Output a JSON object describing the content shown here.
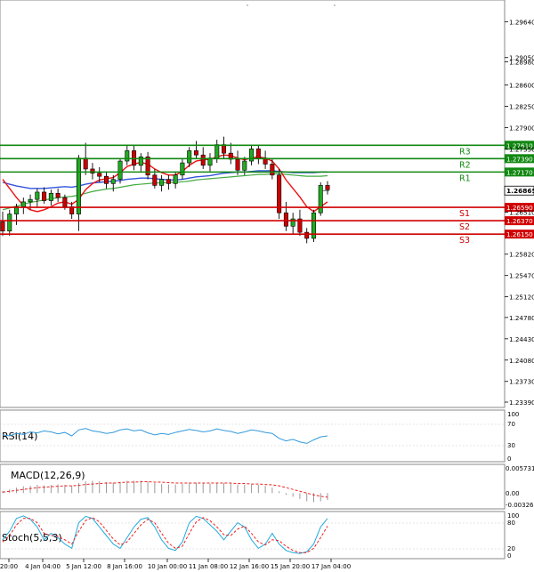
{
  "colors": {
    "support": "#d00000",
    "resistance": "#118811",
    "candle_up": "#22aa22",
    "candle_down": "#cc0000",
    "ma_red": "#ee1111",
    "ma_blue": "#3355dd",
    "ma_green": "#44aa44",
    "rsi_line": "#3399dd",
    "macd_hist": "#999999",
    "macd_signal": "#ee2222",
    "stoch_main": "#22aadd",
    "stoch_signal": "#ee2222"
  },
  "main_axis": {
    "ticks": [
      "1.29640",
      "1.29050",
      "1.28980",
      "1.28600",
      "1.28250",
      "1.27900",
      "1.27550",
      "1.26510",
      "1.25820",
      "1.25470",
      "1.25120",
      "1.24780",
      "1.24430",
      "1.24080",
      "1.23730",
      "1.23390"
    ],
    "ylim": [
      1.2339,
      1.2985
    ]
  },
  "levels": [
    {
      "name": "R3",
      "label": "1.27610",
      "value": 1.2761,
      "kind": "resistance"
    },
    {
      "name": "R2",
      "label": "1.27390",
      "value": 1.2739,
      "kind": "resistance"
    },
    {
      "name": "R1",
      "label": "1.27170",
      "value": 1.2717,
      "kind": "resistance"
    },
    {
      "name": "S1",
      "label": "1.26590",
      "value": 1.2659,
      "kind": "support"
    },
    {
      "name": "S2",
      "label": "1.26370",
      "value": 1.2637,
      "kind": "support"
    },
    {
      "name": "S3",
      "label": "1.26150",
      "value": 1.2615,
      "kind": "support"
    }
  ],
  "current_price": {
    "label": "1.26865",
    "value": 1.26865
  },
  "x_axis": {
    "labels": [
      "20:00",
      "4 Jan 04:00",
      "5 Jan 12:00",
      "8 Jan 16:00",
      "10 Jan 00:00",
      "11 Jan 08:00",
      "12 Jan 16:00",
      "15 Jan 20:00",
      "17 Jan 04:00"
    ]
  },
  "indicators": {
    "rsi": {
      "title": "RSI(14)",
      "ticks": [
        "100",
        "70",
        "30",
        "0"
      ]
    },
    "macd": {
      "title": "MACD(12,26,9)",
      "ticks": [
        "0.005731",
        "0.00",
        "-0.003269"
      ]
    },
    "stoch": {
      "title": "Stoch(5,5,3)",
      "ticks": [
        "100",
        "80",
        "20",
        "0"
      ]
    }
  },
  "chart_data": {
    "type": "candlestick",
    "candles": [
      [
        1.2635,
        1.2652,
        1.2612,
        1.262
      ],
      [
        1.262,
        1.2655,
        1.2612,
        1.2648
      ],
      [
        1.2648,
        1.2665,
        1.263,
        1.266
      ],
      [
        1.266,
        1.2675,
        1.2648,
        1.2668
      ],
      [
        1.2668,
        1.268,
        1.2655,
        1.2672
      ],
      [
        1.2672,
        1.269,
        1.266,
        1.2684
      ],
      [
        1.2684,
        1.2692,
        1.2665,
        1.267
      ],
      [
        1.267,
        1.2688,
        1.2662,
        1.2682
      ],
      [
        1.2682,
        1.269,
        1.2668,
        1.2675
      ],
      [
        1.2675,
        1.268,
        1.2655,
        1.266
      ],
      [
        1.266,
        1.2668,
        1.264,
        1.2648
      ],
      [
        1.2648,
        1.2745,
        1.262,
        1.274
      ],
      [
        1.274,
        1.2765,
        1.2712,
        1.2722
      ],
      [
        1.2722,
        1.2732,
        1.2705,
        1.2715
      ],
      [
        1.2715,
        1.2725,
        1.27,
        1.271
      ],
      [
        1.271,
        1.2718,
        1.269,
        1.2698
      ],
      [
        1.2698,
        1.2712,
        1.2685,
        1.2705
      ],
      [
        1.2705,
        1.2738,
        1.2698,
        1.2735
      ],
      [
        1.2735,
        1.276,
        1.2728,
        1.2752
      ],
      [
        1.2752,
        1.276,
        1.272,
        1.2728
      ],
      [
        1.2728,
        1.2748,
        1.2718,
        1.2742
      ],
      [
        1.2742,
        1.275,
        1.2705,
        1.2712
      ],
      [
        1.2712,
        1.2722,
        1.269,
        1.2695
      ],
      [
        1.2695,
        1.2712,
        1.2685,
        1.2705
      ],
      [
        1.2705,
        1.2712,
        1.2688,
        1.2698
      ],
      [
        1.2698,
        1.2718,
        1.269,
        1.2712
      ],
      [
        1.2712,
        1.2738,
        1.2705,
        1.2732
      ],
      [
        1.2732,
        1.2758,
        1.2725,
        1.2752
      ],
      [
        1.2752,
        1.2768,
        1.2738,
        1.2745
      ],
      [
        1.2745,
        1.2758,
        1.2722,
        1.2728
      ],
      [
        1.2728,
        1.2748,
        1.2718,
        1.274
      ],
      [
        1.274,
        1.277,
        1.2732,
        1.2762
      ],
      [
        1.2762,
        1.2775,
        1.274,
        1.2748
      ],
      [
        1.2748,
        1.2765,
        1.273,
        1.2738
      ],
      [
        1.2738,
        1.2752,
        1.2712,
        1.272
      ],
      [
        1.272,
        1.2742,
        1.2712,
        1.2735
      ],
      [
        1.2735,
        1.2762,
        1.2728,
        1.2755
      ],
      [
        1.2755,
        1.276,
        1.273,
        1.274
      ],
      [
        1.274,
        1.2752,
        1.2722,
        1.273
      ],
      [
        1.273,
        1.2738,
        1.2705,
        1.2712
      ],
      [
        1.2712,
        1.2722,
        1.264,
        1.265
      ],
      [
        1.265,
        1.2668,
        1.262,
        1.2628
      ],
      [
        1.2628,
        1.265,
        1.2615,
        1.264
      ],
      [
        1.264,
        1.2655,
        1.2612,
        1.2618
      ],
      [
        1.2618,
        1.2625,
        1.26,
        1.2608
      ],
      [
        1.2608,
        1.2655,
        1.2602,
        1.265
      ],
      [
        1.265,
        1.27,
        1.2645,
        1.2695
      ],
      [
        1.2695,
        1.2702,
        1.268,
        1.2688
      ]
    ],
    "series": [
      {
        "values": [
          1.2705,
          1.269,
          1.2675,
          1.2662,
          1.2655,
          1.2652,
          1.2655,
          1.266,
          1.2666,
          1.2668,
          1.2664,
          1.2672,
          1.2688,
          1.2698,
          1.2704,
          1.2706,
          1.2708,
          1.2716,
          1.2726,
          1.273,
          1.2733,
          1.273,
          1.2722,
          1.2716,
          1.2712,
          1.2712,
          1.2718,
          1.2728,
          1.2735,
          1.2737,
          1.2738,
          1.2742,
          1.2745,
          1.2744,
          1.274,
          1.2737,
          1.274,
          1.2742,
          1.274,
          1.2735,
          1.2722,
          1.2704,
          1.269,
          1.2676,
          1.266,
          1.2652,
          1.266,
          1.2668
        ]
      },
      {
        "values": [
          1.27,
          1.2697,
          1.2694,
          1.2692,
          1.269,
          1.269,
          1.269,
          1.2691,
          1.2692,
          1.2693,
          1.2692,
          1.2694,
          1.2697,
          1.2699,
          1.27,
          1.2701,
          1.2702,
          1.2703,
          1.2705,
          1.2706,
          1.2707,
          1.2707,
          1.2706,
          1.2705,
          1.2704,
          1.2704,
          1.2705,
          1.2707,
          1.2709,
          1.271,
          1.2711,
          1.2713,
          1.2715,
          1.2716,
          1.2717,
          1.2717,
          1.2718,
          1.2719,
          1.2719,
          1.2719,
          1.2718,
          1.2717,
          1.2716,
          1.2716,
          1.2716,
          1.2716,
          1.2717,
          1.2717
        ]
      },
      {
        "values": [
          1.2655,
          1.2658,
          1.2661,
          1.2664,
          1.2667,
          1.2669,
          1.2671,
          1.2673,
          1.2675,
          1.2676,
          1.2677,
          1.2679,
          1.2682,
          1.2685,
          1.2687,
          1.2689,
          1.269,
          1.2692,
          1.2694,
          1.2696,
          1.2697,
          1.2698,
          1.2699,
          1.2699,
          1.27,
          1.27,
          1.2701,
          1.2702,
          1.2704,
          1.2705,
          1.2706,
          1.2707,
          1.2708,
          1.2709,
          1.271,
          1.2711,
          1.2712,
          1.2713,
          1.2713,
          1.2714,
          1.2714,
          1.2713,
          1.2712,
          1.2711,
          1.271,
          1.271,
          1.271,
          1.2711
        ]
      },
      {
        "values": [
          52,
          50,
          55,
          53,
          58,
          56,
          60,
          58,
          54,
          57,
          50,
          62,
          65,
          60,
          58,
          55,
          57,
          62,
          64,
          60,
          62,
          56,
          52,
          55,
          53,
          57,
          60,
          63,
          61,
          58,
          60,
          64,
          61,
          59,
          55,
          58,
          62,
          60,
          57,
          55,
          45,
          40,
          43,
          38,
          35,
          42,
          48,
          50
        ]
      },
      {
        "values": [
          0.0005,
          0.0008,
          0.0012,
          0.0015,
          0.0016,
          0.0018,
          0.0017,
          0.0018,
          0.0019,
          0.0018,
          0.0016,
          0.0022,
          0.0026,
          0.0027,
          0.0026,
          0.0024,
          0.0023,
          0.0025,
          0.0027,
          0.0027,
          0.0027,
          0.0025,
          0.0022,
          0.002,
          0.0019,
          0.0019,
          0.002,
          0.0022,
          0.0023,
          0.0022,
          0.0021,
          0.0022,
          0.0022,
          0.0021,
          0.0019,
          0.0018,
          0.0019,
          0.0018,
          0.0016,
          0.0012,
          0.0004,
          -0.0004,
          -0.0008,
          -0.0013,
          -0.0018,
          -0.002,
          -0.0018,
          -0.0015
        ]
      },
      {
        "values": [
          0.0002,
          0.0004,
          0.0006,
          0.0008,
          0.001,
          0.0012,
          0.0013,
          0.0014,
          0.0015,
          0.0016,
          0.0016,
          0.0017,
          0.0019,
          0.002,
          0.0021,
          0.0022,
          0.0022,
          0.0023,
          0.0024,
          0.0024,
          0.0025,
          0.0025,
          0.0024,
          0.0024,
          0.0023,
          0.0022,
          0.0022,
          0.0022,
          0.0022,
          0.0022,
          0.0022,
          0.0022,
          0.0022,
          0.0022,
          0.0021,
          0.0021,
          0.002,
          0.002,
          0.0019,
          0.0018,
          0.0016,
          0.0012,
          0.0008,
          0.0004,
          0.0,
          -0.0004,
          -0.0007,
          -0.0009
        ]
      },
      {
        "values": [
          40,
          60,
          90,
          96,
          88,
          70,
          40,
          55,
          45,
          30,
          20,
          80,
          95,
          90,
          70,
          50,
          30,
          20,
          45,
          70,
          88,
          92,
          70,
          40,
          20,
          15,
          35,
          80,
          95,
          90,
          75,
          60,
          40,
          60,
          80,
          70,
          40,
          20,
          30,
          55,
          30,
          15,
          10,
          8,
          12,
          30,
          70,
          90
        ]
      },
      {
        "values": [
          35,
          50,
          75,
          90,
          90,
          80,
          55,
          50,
          48,
          40,
          30,
          60,
          85,
          92,
          82,
          62,
          42,
          28,
          35,
          55,
          75,
          88,
          80,
          55,
          32,
          20,
          25,
          55,
          82,
          92,
          85,
          70,
          52,
          50,
          65,
          72,
          55,
          35,
          28,
          40,
          38,
          25,
          15,
          10,
          10,
          20,
          45,
          72
        ]
      }
    ]
  }
}
